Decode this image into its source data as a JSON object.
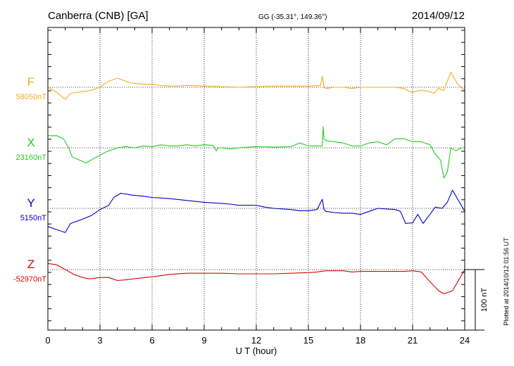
{
  "header": {
    "station": "Canberra (CNB)  [GA]",
    "coords": "GG (-35.31°, 149.36°)",
    "date": "2014/09/12"
  },
  "footer": {
    "plotted": "Plotted at 2014/10/12 01:56 UT"
  },
  "chart_data": {
    "type": "line",
    "xlabel": "U T (hour)",
    "xlim": [
      0,
      24
    ],
    "x_ticks": [
      "0",
      "3",
      "6",
      "9",
      "12",
      "15",
      "18",
      "21",
      "24"
    ],
    "scale_bar_label": "100 nT",
    "scale_bar_nT": 100,
    "series": [
      {
        "name": "F",
        "baseline_label": "58050nT",
        "baseline_nT": 58050,
        "color": "#f0b020",
        "x": [
          0,
          0.5,
          1.0,
          1.3,
          1.8,
          2.5,
          3.0,
          3.5,
          4.0,
          4.3,
          4.8,
          5.5,
          6.0,
          6.5,
          7.0,
          7.5,
          8.0,
          9.0,
          10.0,
          11.0,
          12.0,
          13.0,
          14.0,
          15.0,
          15.7,
          15.8,
          15.9,
          16.0,
          16.5,
          17.0,
          17.5,
          18.0,
          19.0,
          20.0,
          20.5,
          20.8,
          21.0,
          21.5,
          22.0,
          22.2,
          22.5,
          22.8,
          23.0,
          23.2,
          23.4,
          23.6,
          23.8,
          24.0
        ],
        "y": [
          58050,
          58042,
          58030,
          58040,
          58042,
          58045,
          58050,
          58060,
          58065,
          58062,
          58057,
          58055,
          58055,
          58053,
          58052,
          58052,
          58053,
          58052,
          58051,
          58050,
          58051,
          58052,
          58052,
          58052,
          58053,
          58068,
          58050,
          58048,
          58050,
          58050,
          58048,
          58050,
          58050,
          58050,
          58048,
          58043,
          58042,
          58045,
          58043,
          58040,
          58048,
          58045,
          58060,
          58075,
          58065,
          58055,
          58050,
          58045
        ]
      },
      {
        "name": "X",
        "baseline_label": "23160nT",
        "baseline_nT": 23160,
        "color": "#22cc22",
        "x": [
          0,
          0.5,
          0.9,
          1.2,
          1.4,
          1.8,
          2.2,
          2.5,
          3.0,
          3.5,
          4.0,
          4.5,
          5.0,
          5.5,
          6.0,
          6.5,
          7.0,
          7.5,
          8.0,
          8.5,
          9.0,
          9.5,
          9.7,
          9.8,
          10.0,
          10.5,
          11.0,
          12.0,
          13.0,
          14.0,
          14.5,
          15.0,
          15.8,
          15.85,
          15.9,
          16.0,
          16.5,
          17.0,
          17.5,
          18.0,
          18.5,
          19.0,
          19.5,
          20.0,
          20.5,
          21.0,
          21.5,
          22.0,
          22.3,
          22.6,
          22.8,
          23.0,
          23.2,
          23.5,
          23.8,
          24.0
        ],
        "y": [
          23180,
          23180,
          23175,
          23160,
          23145,
          23140,
          23135,
          23140,
          23148,
          23155,
          23160,
          23162,
          23160,
          23163,
          23162,
          23165,
          23163,
          23163,
          23165,
          23163,
          23165,
          23164,
          23155,
          23160,
          23160,
          23158,
          23160,
          23162,
          23161,
          23162,
          23168,
          23163,
          23163,
          23195,
          23175,
          23172,
          23170,
          23168,
          23163,
          23163,
          23168,
          23170,
          23165,
          23175,
          23175,
          23170,
          23170,
          23165,
          23150,
          23140,
          23110,
          23120,
          23160,
          23155,
          23160,
          23160
        ]
      },
      {
        "name": "Y",
        "baseline_label": "5150nT",
        "baseline_nT": 5150,
        "color": "#0000cc",
        "x": [
          0,
          0.5,
          1.0,
          1.3,
          1.8,
          2.5,
          3.0,
          3.5,
          3.8,
          4.2,
          4.8,
          5.5,
          6.0,
          7.0,
          8.0,
          9.0,
          10.0,
          10.5,
          11.0,
          12.0,
          12.5,
          13.0,
          14.0,
          14.5,
          15.0,
          15.5,
          15.8,
          15.9,
          16.0,
          16.5,
          17.0,
          17.5,
          18.0,
          18.5,
          19.0,
          19.5,
          20.0,
          20.3,
          20.6,
          21.0,
          21.3,
          21.6,
          22.0,
          22.3,
          22.7,
          23.0,
          23.3,
          23.6,
          24.0
        ],
        "y": [
          5120,
          5115,
          5110,
          5125,
          5130,
          5138,
          5148,
          5155,
          5168,
          5175,
          5172,
          5170,
          5168,
          5166,
          5163,
          5160,
          5158,
          5157,
          5155,
          5155,
          5152,
          5150,
          5148,
          5146,
          5146,
          5148,
          5165,
          5148,
          5145,
          5143,
          5142,
          5142,
          5140,
          5145,
          5150,
          5149,
          5148,
          5145,
          5125,
          5126,
          5140,
          5125,
          5140,
          5152,
          5150,
          5160,
          5180,
          5165,
          5145
        ]
      },
      {
        "name": "Z",
        "baseline_label": "-52970nT",
        "baseline_nT": -52970,
        "color": "#dd0000",
        "x": [
          0,
          0.5,
          1.0,
          1.5,
          2.0,
          2.3,
          2.5,
          3.0,
          3.5,
          4.0,
          4.5,
          5.0,
          6.0,
          7.0,
          8.0,
          9.0,
          10.0,
          11.0,
          12.0,
          13.0,
          14.0,
          15.0,
          15.5,
          16.0,
          17.0,
          17.5,
          18.0,
          19.0,
          20.0,
          20.5,
          21.0,
          21.5,
          22.0,
          22.5,
          22.8,
          23.0,
          23.3,
          23.6,
          24.0
        ],
        "y": [
          -52960,
          -52962,
          -52970,
          -52978,
          -52983,
          -52985,
          -52985,
          -52983,
          -52983,
          -52988,
          -52987,
          -52985,
          -52982,
          -52978,
          -52976,
          -52976,
          -52976,
          -52977,
          -52977,
          -52977,
          -52976,
          -52975,
          -52974,
          -52972,
          -52972,
          -52974,
          -52973,
          -52973,
          -52973,
          -52973,
          -52972,
          -52974,
          -52990,
          -53005,
          -53010,
          -53008,
          -53005,
          -52990,
          -52970
        ]
      }
    ]
  }
}
